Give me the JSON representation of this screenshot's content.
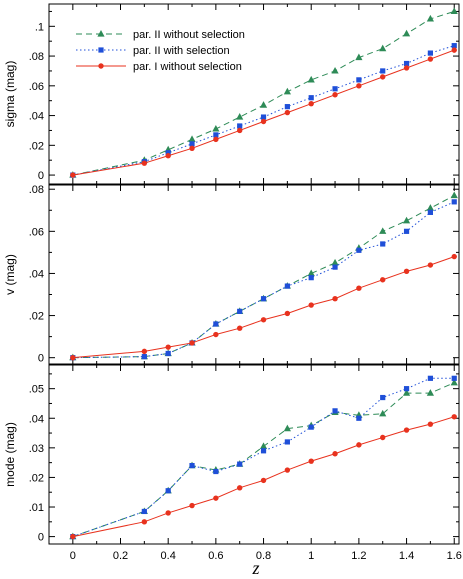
{
  "chart_data": {
    "type": "line",
    "xlabel": "z",
    "xlim": [
      -0.1,
      1.62
    ],
    "xticks": [
      0,
      0.2,
      0.4,
      0.6,
      0.8,
      1,
      1.2,
      1.4,
      1.6
    ],
    "legend_placement": "top-left of top panel",
    "series_styles": [
      {
        "name": "par. II without selection",
        "color": "#2e8b57",
        "line": "dashed",
        "marker": "triangle"
      },
      {
        "name": "par. II with selection",
        "color": "#1f4fd8",
        "line": "dotted",
        "marker": "square"
      },
      {
        "name": "par. I without selection",
        "color": "#e8321e",
        "line": "solid",
        "marker": "circle"
      }
    ],
    "panels": [
      {
        "ylabel": "sigma (mag)",
        "ylim": [
          -0.006,
          0.115
        ],
        "yticks": [
          0,
          0.02,
          0.04,
          0.06,
          0.08,
          0.1
        ],
        "show_legend": true,
        "series": [
          {
            "name": "par. II without selection",
            "x": [
              0,
              0.3,
              0.4,
              0.5,
              0.6,
              0.7,
              0.8,
              0.9,
              1.0,
              1.1,
              1.2,
              1.3,
              1.4,
              1.5,
              1.6
            ],
            "values": [
              0,
              0.01,
              0.017,
              0.024,
              0.031,
              0.039,
              0.047,
              0.056,
              0.064,
              0.07,
              0.079,
              0.085,
              0.095,
              0.105,
              0.11
            ]
          },
          {
            "name": "par. II with selection",
            "x": [
              0,
              0.3,
              0.4,
              0.5,
              0.6,
              0.7,
              0.8,
              0.9,
              1.0,
              1.1,
              1.2,
              1.3,
              1.4,
              1.5,
              1.6
            ],
            "values": [
              0,
              0.009,
              0.015,
              0.021,
              0.027,
              0.033,
              0.039,
              0.046,
              0.052,
              0.058,
              0.064,
              0.07,
              0.075,
              0.082,
              0.087
            ]
          },
          {
            "name": "par. I without selection",
            "x": [
              0,
              0.3,
              0.4,
              0.5,
              0.6,
              0.7,
              0.8,
              0.9,
              1.0,
              1.1,
              1.2,
              1.3,
              1.4,
              1.5,
              1.6
            ],
            "values": [
              0,
              0.008,
              0.013,
              0.018,
              0.024,
              0.03,
              0.036,
              0.042,
              0.048,
              0.054,
              0.06,
              0.066,
              0.072,
              0.078,
              0.084
            ]
          }
        ]
      },
      {
        "ylabel": "v (mag)",
        "ylim": [
          -0.003,
          0.082
        ],
        "yticks": [
          0,
          0.02,
          0.04,
          0.06,
          0.08
        ],
        "show_legend": false,
        "series": [
          {
            "name": "par. II without selection",
            "x": [
              0,
              0.3,
              0.4,
              0.5,
              0.6,
              0.7,
              0.8,
              0.9,
              1.0,
              1.1,
              1.2,
              1.3,
              1.4,
              1.5,
              1.6
            ],
            "values": [
              0,
              0.0005,
              0.002,
              0.007,
              0.016,
              0.022,
              0.028,
              0.034,
              0.04,
              0.045,
              0.052,
              0.06,
              0.065,
              0.071,
              0.077
            ]
          },
          {
            "name": "par. II with selection",
            "x": [
              0,
              0.3,
              0.4,
              0.5,
              0.6,
              0.7,
              0.8,
              0.9,
              1.0,
              1.1,
              1.2,
              1.3,
              1.4,
              1.5,
              1.6
            ],
            "values": [
              0,
              0.0005,
              0.002,
              0.007,
              0.016,
              0.022,
              0.028,
              0.034,
              0.038,
              0.043,
              0.051,
              0.054,
              0.06,
              0.069,
              0.074
            ]
          },
          {
            "name": "par. I without selection",
            "x": [
              0,
              0.3,
              0.4,
              0.5,
              0.6,
              0.7,
              0.8,
              0.9,
              1.0,
              1.1,
              1.2,
              1.3,
              1.4,
              1.5,
              1.6
            ],
            "values": [
              0,
              0.003,
              0.005,
              0.007,
              0.011,
              0.014,
              0.018,
              0.021,
              0.025,
              0.028,
              0.033,
              0.037,
              0.041,
              0.044,
              0.048
            ]
          }
        ]
      },
      {
        "ylabel": "mode (mag)",
        "ylim": [
          -0.0025,
          0.058
        ],
        "yticks": [
          0,
          0.01,
          0.02,
          0.03,
          0.04,
          0.05
        ],
        "show_legend": false,
        "series": [
          {
            "name": "par. II without selection",
            "x": [
              0,
              0.3,
              0.4,
              0.5,
              0.6,
              0.7,
              0.8,
              0.9,
              1.0,
              1.1,
              1.2,
              1.3,
              1.4,
              1.5,
              1.6
            ],
            "values": [
              0,
              0.0085,
              0.0155,
              0.024,
              0.0225,
              0.0245,
              0.0305,
              0.0365,
              0.0375,
              0.042,
              0.041,
              0.0415,
              0.0485,
              0.0485,
              0.052
            ]
          },
          {
            "name": "par. II with selection",
            "x": [
              0,
              0.3,
              0.4,
              0.5,
              0.6,
              0.7,
              0.8,
              0.9,
              1.0,
              1.1,
              1.2,
              1.3,
              1.4,
              1.5,
              1.6
            ],
            "values": [
              0,
              0.0085,
              0.0155,
              0.024,
              0.022,
              0.0245,
              0.029,
              0.032,
              0.037,
              0.0425,
              0.04,
              0.047,
              0.05,
              0.0535,
              0.0535
            ]
          },
          {
            "name": "par. I without selection",
            "x": [
              0,
              0.3,
              0.4,
              0.5,
              0.6,
              0.7,
              0.8,
              0.9,
              1.0,
              1.1,
              1.2,
              1.3,
              1.4,
              1.5,
              1.6
            ],
            "values": [
              0,
              0.005,
              0.008,
              0.0105,
              0.013,
              0.0165,
              0.019,
              0.0225,
              0.0255,
              0.028,
              0.031,
              0.0335,
              0.036,
              0.038,
              0.0405
            ]
          }
        ]
      }
    ]
  }
}
